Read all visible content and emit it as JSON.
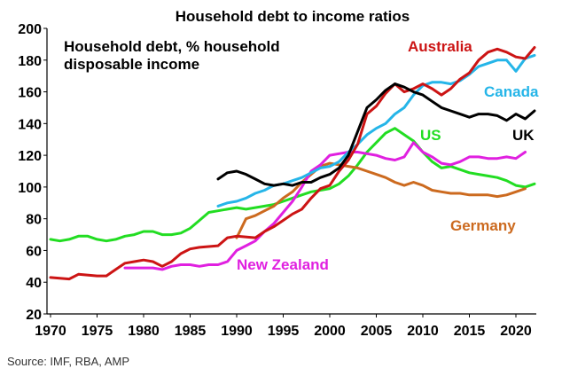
{
  "chart_data": {
    "type": "line",
    "title": "Household debt to income ratios",
    "subtitle_lines": [
      "Household debt, % household",
      "disposable income"
    ],
    "xlabel": "",
    "ylabel": "",
    "xlim": [
      1970,
      2023
    ],
    "ylim": [
      20,
      200
    ],
    "x_ticks": [
      "1970",
      "1975",
      "1980",
      "1985",
      "1990",
      "1995",
      "2000",
      "2005",
      "2010",
      "2015",
      "2020"
    ],
    "y_ticks": [
      "20",
      "40",
      "60",
      "80",
      "100",
      "120",
      "140",
      "160",
      "180",
      "200"
    ],
    "grid": false,
    "series": [
      {
        "name": "Australia",
        "color": "#cc1414",
        "label_color": "#cc1414",
        "points": [
          [
            1970,
            43
          ],
          [
            1972,
            42
          ],
          [
            1973,
            45
          ],
          [
            1975,
            44
          ],
          [
            1976,
            44
          ],
          [
            1977,
            48
          ],
          [
            1978,
            52
          ],
          [
            1979,
            53
          ],
          [
            1980,
            54
          ],
          [
            1981,
            53
          ],
          [
            1982,
            50
          ],
          [
            1983,
            53
          ],
          [
            1984,
            58
          ],
          [
            1985,
            61
          ],
          [
            1986,
            62
          ],
          [
            1988,
            63
          ],
          [
            1989,
            68
          ],
          [
            1990,
            69
          ],
          [
            1992,
            68
          ],
          [
            1993,
            72
          ],
          [
            1994,
            75
          ],
          [
            1995,
            79
          ],
          [
            1996,
            83
          ],
          [
            1997,
            86
          ],
          [
            1998,
            93
          ],
          [
            1999,
            99
          ],
          [
            2000,
            101
          ],
          [
            2001,
            110
          ],
          [
            2002,
            117
          ],
          [
            2003,
            127
          ],
          [
            2004,
            146
          ],
          [
            2005,
            151
          ],
          [
            2006,
            159
          ],
          [
            2007,
            165
          ],
          [
            2008,
            160
          ],
          [
            2009,
            162
          ],
          [
            2010,
            165
          ],
          [
            2011,
            162
          ],
          [
            2012,
            158
          ],
          [
            2013,
            162
          ],
          [
            2014,
            168
          ],
          [
            2015,
            172
          ],
          [
            2016,
            180
          ],
          [
            2017,
            185
          ],
          [
            2018,
            187
          ],
          [
            2019,
            185
          ],
          [
            2020,
            182
          ],
          [
            2021,
            181
          ],
          [
            2022,
            188
          ]
        ]
      },
      {
        "name": "Canada",
        "color": "#25b5e8",
        "label_color": "#25b5e8",
        "points": [
          [
            1988,
            88
          ],
          [
            1989,
            90
          ],
          [
            1990,
            91
          ],
          [
            1991,
            93
          ],
          [
            1992,
            96
          ],
          [
            1993,
            98
          ],
          [
            1994,
            101
          ],
          [
            1995,
            102
          ],
          [
            1996,
            104
          ],
          [
            1997,
            106
          ],
          [
            1998,
            109
          ],
          [
            1999,
            112
          ],
          [
            2000,
            113
          ],
          [
            2001,
            116
          ],
          [
            2002,
            122
          ],
          [
            2003,
            127
          ],
          [
            2004,
            133
          ],
          [
            2005,
            137
          ],
          [
            2006,
            140
          ],
          [
            2007,
            146
          ],
          [
            2008,
            150
          ],
          [
            2009,
            158
          ],
          [
            2010,
            164
          ],
          [
            2011,
            166
          ],
          [
            2012,
            166
          ],
          [
            2013,
            165
          ],
          [
            2014,
            167
          ],
          [
            2015,
            171
          ],
          [
            2016,
            176
          ],
          [
            2017,
            178
          ],
          [
            2018,
            180
          ],
          [
            2019,
            180
          ],
          [
            2020,
            173
          ],
          [
            2021,
            181
          ],
          [
            2022,
            183
          ]
        ]
      },
      {
        "name": "UK",
        "color": "#000000",
        "label_color": "#000000",
        "points": [
          [
            1988,
            105
          ],
          [
            1989,
            109
          ],
          [
            1990,
            110
          ],
          [
            1991,
            108
          ],
          [
            1992,
            105
          ],
          [
            1993,
            102
          ],
          [
            1994,
            101
          ],
          [
            1995,
            102
          ],
          [
            1996,
            101
          ],
          [
            1997,
            103
          ],
          [
            1998,
            103
          ],
          [
            1999,
            106
          ],
          [
            2000,
            108
          ],
          [
            2001,
            112
          ],
          [
            2002,
            120
          ],
          [
            2003,
            135
          ],
          [
            2004,
            150
          ],
          [
            2005,
            155
          ],
          [
            2006,
            161
          ],
          [
            2007,
            165
          ],
          [
            2008,
            163
          ],
          [
            2009,
            160
          ],
          [
            2010,
            158
          ],
          [
            2011,
            154
          ],
          [
            2012,
            150
          ],
          [
            2013,
            148
          ],
          [
            2014,
            146
          ],
          [
            2015,
            144
          ],
          [
            2016,
            146
          ],
          [
            2017,
            146
          ],
          [
            2018,
            145
          ],
          [
            2019,
            142
          ],
          [
            2020,
            146
          ],
          [
            2021,
            143
          ],
          [
            2022,
            148
          ]
        ]
      },
      {
        "name": "US",
        "color": "#22dd22",
        "label_color": "#22dd22",
        "points": [
          [
            1970,
            67
          ],
          [
            1971,
            66
          ],
          [
            1972,
            67
          ],
          [
            1973,
            69
          ],
          [
            1974,
            69
          ],
          [
            1975,
            67
          ],
          [
            1976,
            66
          ],
          [
            1977,
            67
          ],
          [
            1978,
            69
          ],
          [
            1979,
            70
          ],
          [
            1980,
            72
          ],
          [
            1981,
            72
          ],
          [
            1982,
            70
          ],
          [
            1983,
            70
          ],
          [
            1984,
            71
          ],
          [
            1985,
            74
          ],
          [
            1986,
            79
          ],
          [
            1987,
            84
          ],
          [
            1988,
            85
          ],
          [
            1989,
            86
          ],
          [
            1990,
            87
          ],
          [
            1991,
            86
          ],
          [
            1992,
            87
          ],
          [
            1993,
            88
          ],
          [
            1994,
            89
          ],
          [
            1995,
            91
          ],
          [
            1996,
            93
          ],
          [
            1997,
            95
          ],
          [
            1998,
            97
          ],
          [
            1999,
            98
          ],
          [
            2000,
            99
          ],
          [
            2001,
            102
          ],
          [
            2002,
            107
          ],
          [
            2003,
            114
          ],
          [
            2004,
            122
          ],
          [
            2005,
            128
          ],
          [
            2006,
            134
          ],
          [
            2007,
            137
          ],
          [
            2008,
            133
          ],
          [
            2009,
            129
          ],
          [
            2010,
            122
          ],
          [
            2011,
            116
          ],
          [
            2012,
            112
          ],
          [
            2013,
            113
          ],
          [
            2014,
            111
          ],
          [
            2015,
            109
          ],
          [
            2016,
            108
          ],
          [
            2017,
            107
          ],
          [
            2018,
            106
          ],
          [
            2019,
            104
          ],
          [
            2020,
            101
          ],
          [
            2021,
            100
          ],
          [
            2022,
            102
          ]
        ]
      },
      {
        "name": "Germany",
        "color": "#cc6a1f",
        "label_color": "#cc6a1f",
        "points": [
          [
            1990,
            68
          ],
          [
            1991,
            80
          ],
          [
            1992,
            82
          ],
          [
            1993,
            85
          ],
          [
            1994,
            88
          ],
          [
            1995,
            93
          ],
          [
            1996,
            97
          ],
          [
            1997,
            103
          ],
          [
            1998,
            108
          ],
          [
            1999,
            113
          ],
          [
            2000,
            115
          ],
          [
            2001,
            114
          ],
          [
            2002,
            113
          ],
          [
            2003,
            112
          ],
          [
            2004,
            110
          ],
          [
            2005,
            108
          ],
          [
            2006,
            106
          ],
          [
            2007,
            103
          ],
          [
            2008,
            101
          ],
          [
            2009,
            103
          ],
          [
            2010,
            101
          ],
          [
            2011,
            98
          ],
          [
            2012,
            97
          ],
          [
            2013,
            96
          ],
          [
            2014,
            96
          ],
          [
            2015,
            95
          ],
          [
            2016,
            95
          ],
          [
            2017,
            95
          ],
          [
            2018,
            94
          ],
          [
            2019,
            95
          ],
          [
            2020,
            97
          ],
          [
            2021,
            99
          ]
        ]
      },
      {
        "name": "New Zealand",
        "color": "#e020e0",
        "label_color": "#e020e0",
        "points": [
          [
            1978,
            49
          ],
          [
            1980,
            49
          ],
          [
            1981,
            49
          ],
          [
            1982,
            48
          ],
          [
            1983,
            50
          ],
          [
            1984,
            51
          ],
          [
            1985,
            51
          ],
          [
            1986,
            50
          ],
          [
            1987,
            51
          ],
          [
            1988,
            51
          ],
          [
            1989,
            53
          ],
          [
            1990,
            60
          ],
          [
            1991,
            63
          ],
          [
            1992,
            66
          ],
          [
            1993,
            72
          ],
          [
            1994,
            77
          ],
          [
            1995,
            84
          ],
          [
            1996,
            91
          ],
          [
            1997,
            100
          ],
          [
            1998,
            110
          ],
          [
            1999,
            114
          ],
          [
            2000,
            120
          ],
          [
            2001,
            121
          ],
          [
            2002,
            122
          ],
          [
            2003,
            122
          ],
          [
            2004,
            121
          ],
          [
            2005,
            120
          ],
          [
            2006,
            118
          ],
          [
            2007,
            117
          ],
          [
            2008,
            119
          ],
          [
            2009,
            128
          ],
          [
            2010,
            122
          ],
          [
            2011,
            119
          ],
          [
            2012,
            115
          ],
          [
            2013,
            114
          ],
          [
            2014,
            116
          ],
          [
            2015,
            119
          ],
          [
            2016,
            119
          ],
          [
            2017,
            118
          ],
          [
            2018,
            118
          ],
          [
            2019,
            119
          ],
          [
            2020,
            118
          ],
          [
            2021,
            122
          ]
        ]
      }
    ],
    "annotations": [
      {
        "text": "Australia",
        "series": "Australia"
      },
      {
        "text": "Canada",
        "series": "Canada"
      },
      {
        "text": "UK",
        "series": "UK"
      },
      {
        "text": "US",
        "series": "US"
      },
      {
        "text": "Germany",
        "series": "Germany"
      },
      {
        "text": "New Zealand",
        "series": "New Zealand"
      }
    ]
  },
  "source_text": "Source: IMF, RBA, AMP"
}
